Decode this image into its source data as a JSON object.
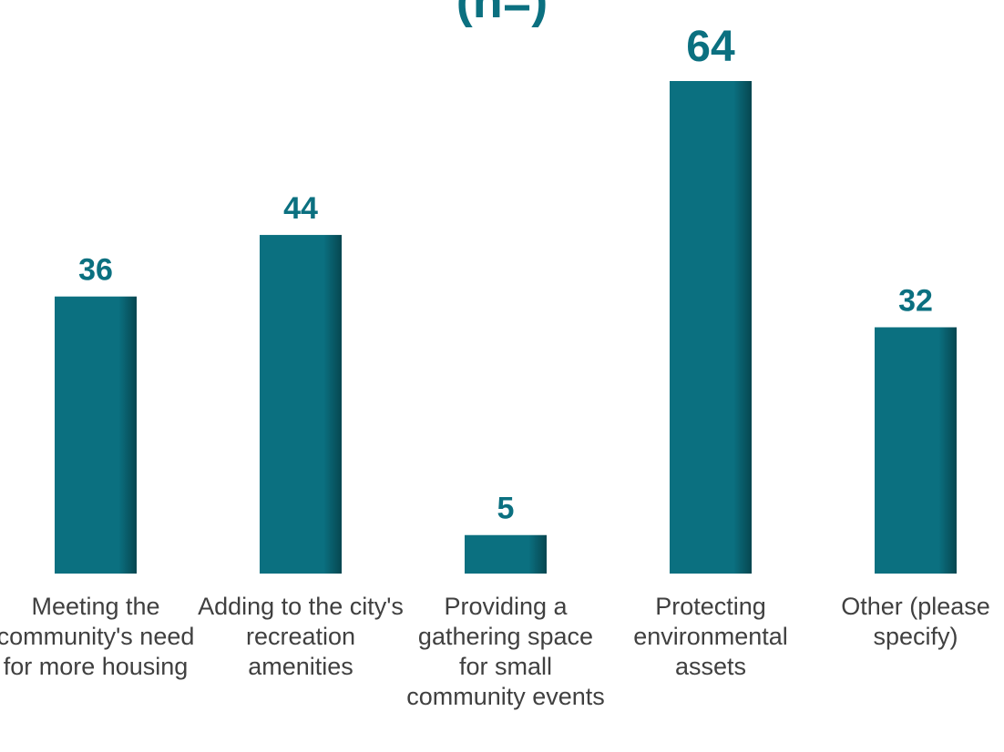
{
  "chart_data": {
    "type": "bar",
    "title": "(n=)",
    "categories": [
      "Meeting the community's need for more housing",
      "Adding to the city's recreation amenities",
      "Providing a gathering space for small community events",
      "Protecting environmental assets",
      "Other (please specify)"
    ],
    "values": [
      36,
      44,
      5,
      64,
      32
    ],
    "ylim": [
      0,
      64
    ],
    "bar_color": "#0b7080",
    "label_color": "#0b7080",
    "grid": false,
    "legend": "none"
  }
}
